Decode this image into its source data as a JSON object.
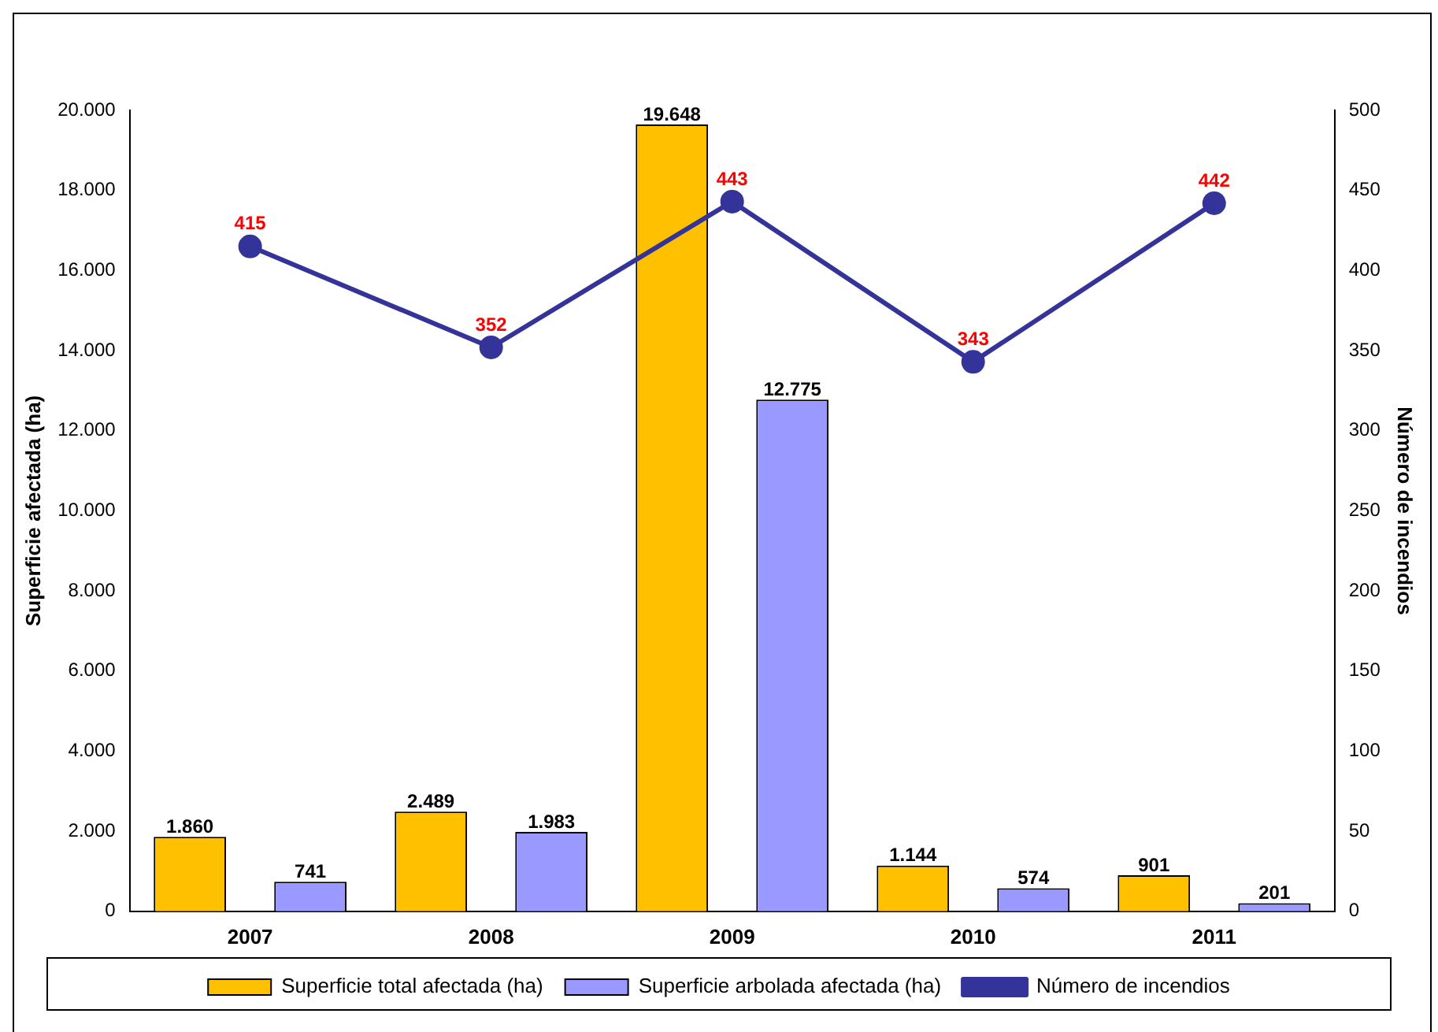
{
  "chart_data": {
    "type": "bar",
    "xlabel": null,
    "ylabel": "Superficie afectada (ha)",
    "y2label": "Número de incendios",
    "categories": [
      "2007",
      "2008",
      "2009",
      "2010",
      "2011"
    ],
    "series": [
      {
        "name": "Superficie total afectada (ha)",
        "color": "#ffc000",
        "values": [
          1860,
          2489,
          19648,
          1144,
          901
        ],
        "value_labels": [
          "1.860",
          "2.489",
          "19.648",
          "1.144",
          "901"
        ]
      },
      {
        "name": "Superficie arbolada afectada (ha)",
        "color": "#9999ff",
        "values": [
          741,
          1983,
          12775,
          574,
          201
        ],
        "value_labels": [
          "741",
          "1.983",
          "12.775",
          "574",
          "201"
        ]
      },
      {
        "name": "Número de incendios",
        "type": "line",
        "axis": "y2",
        "color": "#333399",
        "values": [
          415,
          352,
          443,
          343,
          442
        ],
        "value_labels": [
          "415",
          "352",
          "443",
          "343",
          "442"
        ]
      }
    ],
    "ylim": [
      0,
      20000
    ],
    "yticks": [
      0,
      {
        "value": 2000,
        "label": "2.000"
      },
      {
        "value": 4000,
        "label": "4.000"
      },
      {
        "value": 6000,
        "label": "6.000"
      },
      {
        "value": 8000,
        "label": "8.000"
      },
      {
        "value": 10000,
        "label": "10.000"
      },
      {
        "value": 12000,
        "label": "12.000"
      },
      {
        "value": 14000,
        "label": "14.000"
      },
      {
        "value": 16000,
        "label": "16.000"
      },
      {
        "value": 18000,
        "label": "18.000"
      },
      {
        "value": 20000,
        "label": "20.000"
      }
    ],
    "y2lim": [
      0,
      500
    ],
    "y2ticks": [
      0,
      50,
      100,
      150,
      200,
      250,
      300,
      350,
      400,
      450,
      500
    ],
    "legend": "bottom",
    "grid": false,
    "marker": "circle",
    "line_style": "solid"
  }
}
